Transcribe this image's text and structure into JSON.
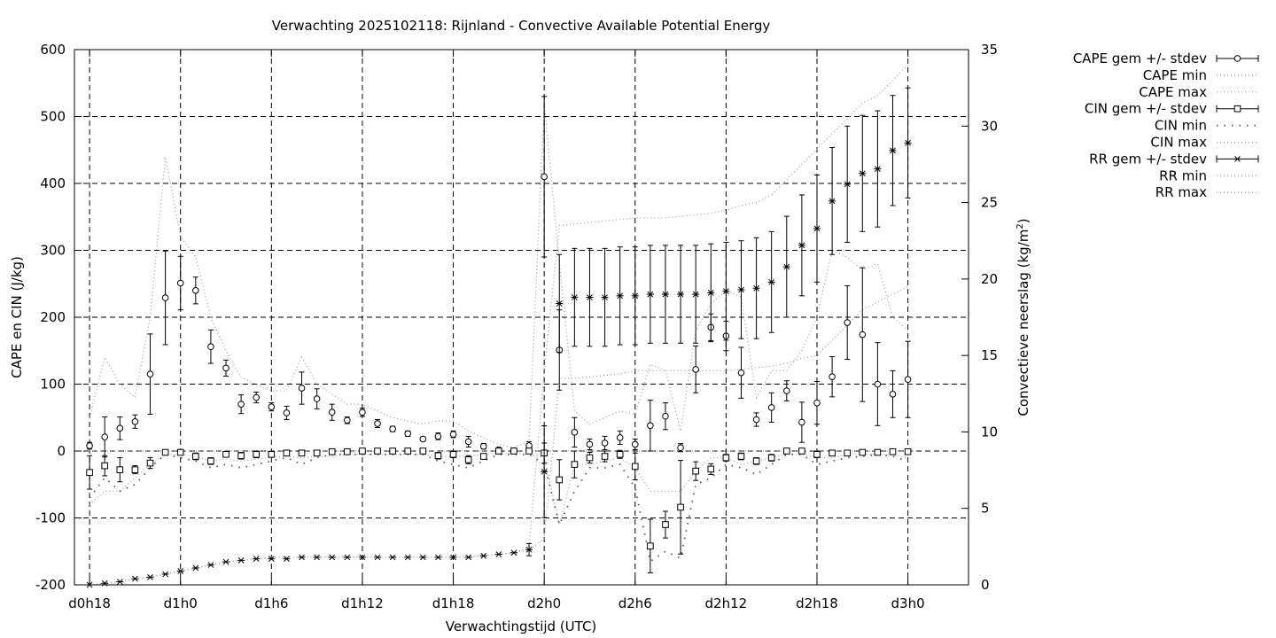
{
  "chart_data": {
    "type": "line",
    "title": "Verwachting 2025102118: Rijnland - Convective Available Potential Energy",
    "xlabel": "Verwachtingstijd (UTC)",
    "ylabel": "CAPE en CIN (J/kg)",
    "y2label": "Convectieve neerslag (kg/m",
    "y2label_sup": "2",
    "y2label_end": ")",
    "x_unit": "forecast hour",
    "xlim": [
      -1,
      58
    ],
    "ylim": [
      -200,
      600
    ],
    "y2lim": [
      0,
      35
    ],
    "grid": true,
    "legend_position": "outside-right",
    "xticks": [
      {
        "x": 0,
        "label": "d0h18"
      },
      {
        "x": 6,
        "label": "d1h0"
      },
      {
        "x": 12,
        "label": "d1h6"
      },
      {
        "x": 18,
        "label": "d1h12"
      },
      {
        "x": 24,
        "label": "d1h18"
      },
      {
        "x": 30,
        "label": "d2h0"
      },
      {
        "x": 36,
        "label": "d2h6"
      },
      {
        "x": 42,
        "label": "d2h12"
      },
      {
        "x": 48,
        "label": "d2h18"
      },
      {
        "x": 54,
        "label": "d3h0"
      }
    ],
    "yticks": [
      -200,
      -100,
      0,
      100,
      200,
      300,
      400,
      500,
      600
    ],
    "y2ticks": [
      0,
      5,
      10,
      15,
      20,
      25,
      30,
      35
    ],
    "x": [
      0,
      1,
      2,
      3,
      4,
      5,
      6,
      7,
      8,
      9,
      10,
      11,
      12,
      13,
      14,
      15,
      16,
      17,
      18,
      19,
      20,
      21,
      22,
      23,
      24,
      25,
      26,
      27,
      28,
      29,
      30,
      31,
      32,
      33,
      34,
      35,
      36,
      37,
      38,
      39,
      40,
      41,
      42,
      43,
      44,
      45,
      46,
      47,
      48,
      49,
      50,
      51,
      52,
      53,
      54
    ],
    "series": [
      {
        "name": "CAPE gem +/- stdev",
        "marker": "circle",
        "axis": "y1",
        "values": [
          8,
          21,
          34,
          44,
          115,
          229,
          251,
          240,
          156,
          124,
          70,
          80,
          66,
          57,
          94,
          78,
          58,
          46,
          58,
          41,
          33,
          26,
          18,
          22,
          25,
          14,
          7,
          2,
          0,
          8,
          410,
          151,
          28,
          10,
          12,
          20,
          10,
          38,
          52,
          5,
          122,
          185,
          172,
          117,
          47,
          65,
          90,
          43,
          72,
          111,
          192,
          174,
          100,
          85,
          107
        ],
        "errors": [
          5,
          30,
          17,
          10,
          60,
          70,
          40,
          20,
          25,
          12,
          14,
          8,
          6,
          10,
          24,
          15,
          12,
          5,
          6,
          6,
          4,
          4,
          3,
          5,
          5,
          8,
          4,
          2,
          2,
          6,
          120,
          60,
          22,
          8,
          10,
          10,
          8,
          38,
          20,
          6,
          35,
          20,
          22,
          38,
          10,
          22,
          15,
          30,
          32,
          30,
          55,
          100,
          62,
          35,
          57
        ]
      },
      {
        "name": "CAPE min",
        "style": "dotted",
        "axis": "y1",
        "values": [
          -80,
          -60,
          -60,
          -40,
          -20,
          -5,
          -5,
          -8,
          -15,
          -12,
          -15,
          -12,
          -10,
          -8,
          -10,
          -8,
          -8,
          -5,
          -5,
          -5,
          -5,
          -5,
          -5,
          -8,
          -8,
          -8,
          -5,
          -5,
          -3,
          -5,
          -10,
          -110,
          -20,
          -20,
          -15,
          -10,
          -25,
          -60,
          -60,
          -60,
          -30,
          -10,
          -10,
          -20,
          -15,
          -10,
          -5,
          -5,
          -10,
          -10,
          -5,
          -5,
          -5,
          -5,
          -10
        ]
      },
      {
        "name": "CAPE max",
        "style": "dotted",
        "axis": "y1",
        "values": [
          50,
          140,
          100,
          80,
          200,
          440,
          320,
          290,
          200,
          150,
          110,
          100,
          90,
          90,
          140,
          100,
          85,
          70,
          70,
          60,
          50,
          45,
          40,
          45,
          45,
          30,
          20,
          10,
          5,
          15,
          520,
          280,
          60,
          40,
          50,
          60,
          55,
          130,
          120,
          30,
          180,
          220,
          240,
          230,
          80,
          120,
          120,
          150,
          200,
          300,
          290,
          270,
          280,
          200,
          180
        ]
      },
      {
        "name": "CIN gem +/- stdev",
        "marker": "square",
        "axis": "y1",
        "values": [
          -32,
          -22,
          -28,
          -28,
          -18,
          -2,
          -2,
          -8,
          -15,
          -5,
          -7,
          -5,
          -5,
          -3,
          -3,
          -3,
          -1,
          -1,
          0,
          0,
          0,
          0,
          0,
          -7,
          -5,
          -13,
          -8,
          0,
          0,
          0,
          -3,
          -43,
          -20,
          -10,
          -8,
          -5,
          -23,
          -142,
          -110,
          -84,
          -30,
          -27,
          -10,
          -8,
          -15,
          -10,
          0,
          0,
          -5,
          -3,
          -3,
          -2,
          -2,
          -1,
          -1
        ],
        "errors": [
          25,
          15,
          18,
          6,
          8,
          2,
          3,
          5,
          5,
          3,
          5,
          5,
          3,
          2,
          2,
          2,
          2,
          2,
          2,
          2,
          2,
          2,
          2,
          5,
          5,
          6,
          4,
          2,
          2,
          2,
          15,
          30,
          20,
          8,
          8,
          6,
          20,
          40,
          20,
          70,
          14,
          8,
          5,
          5,
          5,
          5,
          2,
          2,
          5,
          2,
          2,
          2,
          2,
          2,
          2
        ]
      },
      {
        "name": "CIN min",
        "style": "sparse-dotted",
        "axis": "y1",
        "values": [
          -70,
          -40,
          -60,
          -50,
          -25,
          -5,
          -10,
          -15,
          -25,
          -20,
          -25,
          -20,
          -15,
          -10,
          -20,
          -10,
          -5,
          -5,
          -5,
          -5,
          -5,
          -5,
          -5,
          -15,
          -20,
          -25,
          -15,
          -5,
          -5,
          -5,
          -20,
          -110,
          -60,
          -25,
          -25,
          -20,
          -55,
          -165,
          -150,
          -160,
          -50,
          -40,
          -20,
          -25,
          -35,
          -20,
          -5,
          -5,
          -20,
          -15,
          -10,
          -8,
          -5,
          -8,
          -15
        ]
      },
      {
        "name": "CIN max",
        "style": "dotted",
        "axis": "y1",
        "values": [
          0,
          0,
          0,
          0,
          0,
          0,
          0,
          0,
          0,
          0,
          0,
          0,
          0,
          0,
          0,
          0,
          0,
          0,
          0,
          0,
          0,
          0,
          0,
          0,
          0,
          0,
          0,
          0,
          0,
          0,
          0,
          0,
          0,
          0,
          0,
          0,
          0,
          0,
          0,
          0,
          0,
          0,
          0,
          0,
          0,
          0,
          0,
          0,
          0,
          0,
          0,
          0,
          0,
          0,
          0
        ]
      },
      {
        "name": "RR gem +/- stdev",
        "marker": "star",
        "axis": "y2",
        "values": [
          0.0,
          0.1,
          0.2,
          0.4,
          0.5,
          0.7,
          0.9,
          1.1,
          1.3,
          1.5,
          1.6,
          1.7,
          1.7,
          1.7,
          1.8,
          1.8,
          1.8,
          1.8,
          1.8,
          1.8,
          1.8,
          1.8,
          1.8,
          1.8,
          1.8,
          1.8,
          1.9,
          2.0,
          2.1,
          2.3,
          7.4,
          18.4,
          18.8,
          18.8,
          18.8,
          18.9,
          18.9,
          19.0,
          19.0,
          19.0,
          19.0,
          19.1,
          19.2,
          19.3,
          19.4,
          19.8,
          20.8,
          22.2,
          23.3,
          25.1,
          26.2,
          26.9,
          27.2,
          28.4,
          28.9
        ],
        "errors": [
          0,
          0,
          0,
          0,
          0,
          0,
          0,
          0,
          0,
          0,
          0,
          0,
          0,
          0,
          0,
          0,
          0,
          0,
          0,
          0,
          0,
          0,
          0,
          0,
          0,
          0,
          0,
          0,
          0,
          0.4,
          3.0,
          3.2,
          3.2,
          3.2,
          3.2,
          3.2,
          3.2,
          3.2,
          3.2,
          3.2,
          3.2,
          3.2,
          3.2,
          3.2,
          3.3,
          3.3,
          3.3,
          3.3,
          3.5,
          3.5,
          3.8,
          3.8,
          3.8,
          3.6,
          3.6
        ]
      },
      {
        "name": "RR min",
        "style": "dotted",
        "axis": "y2",
        "values": [
          0.0,
          0.1,
          0.2,
          0.4,
          0.5,
          0.7,
          0.9,
          1.1,
          1.3,
          1.5,
          1.6,
          1.7,
          1.8,
          1.8,
          1.8,
          1.8,
          1.8,
          1.8,
          1.8,
          1.8,
          1.8,
          1.8,
          1.8,
          1.8,
          1.8,
          1.8,
          1.9,
          2.0,
          2.1,
          2.3,
          3.0,
          13.5,
          13.5,
          13.6,
          13.7,
          13.8,
          14.0,
          14.0,
          14.0,
          14.0,
          14.0,
          14.0,
          14.0,
          14.1,
          14.2,
          14.3,
          14.5,
          14.8,
          15.0,
          16.0,
          17.0,
          18.0,
          18.5,
          19.0,
          19.5
        ]
      },
      {
        "name": "RR max",
        "style": "dotted",
        "axis": "y2",
        "values": [
          0.0,
          0.1,
          0.2,
          0.4,
          0.5,
          0.7,
          0.9,
          1.1,
          1.3,
          1.5,
          1.6,
          1.7,
          1.8,
          1.8,
          1.8,
          1.8,
          1.8,
          1.8,
          1.8,
          1.8,
          1.8,
          1.8,
          1.8,
          1.8,
          1.8,
          1.8,
          1.9,
          2.0,
          2.1,
          2.5,
          14.0,
          23.5,
          23.6,
          23.7,
          23.8,
          23.9,
          24.0,
          24.0,
          24.0,
          24.1,
          24.2,
          24.3,
          24.5,
          24.8,
          25.0,
          25.5,
          26.5,
          27.5,
          28.5,
          29.5,
          30.5,
          31.5,
          32.0,
          33.0,
          34.0
        ]
      }
    ]
  }
}
